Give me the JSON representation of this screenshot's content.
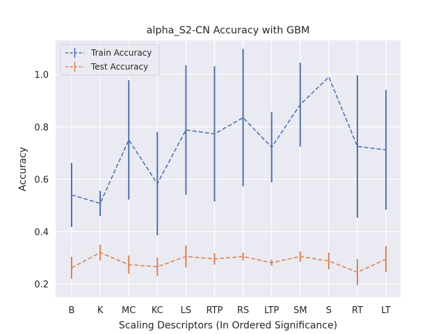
{
  "chart_data": {
    "type": "line",
    "title": "alpha_S2-CN Accuracy with GBM",
    "xlabel": "Scaling Descriptors (In Ordered Significance)",
    "ylabel": "Accuracy",
    "categories": [
      "B",
      "K",
      "MC",
      "KC",
      "LS",
      "RTP",
      "RS",
      "LTP",
      "SM",
      "S",
      "RT",
      "LT"
    ],
    "ylim": [
      0.15,
      1.13
    ],
    "yticks": [
      0.2,
      0.4,
      0.6,
      0.8,
      1.0
    ],
    "ytick_labels": [
      "0.2",
      "0.4",
      "0.6",
      "0.8",
      "1.0"
    ],
    "grid": true,
    "legend_position": "top-left",
    "series": [
      {
        "name": "Train Accuracy",
        "color": "#4c72b0",
        "values": [
          0.54,
          0.508,
          0.75,
          0.583,
          0.788,
          0.773,
          0.835,
          0.722,
          0.885,
          0.99,
          0.725,
          0.712
        ],
        "errors": [
          0.122,
          0.048,
          0.228,
          0.197,
          0.247,
          0.258,
          0.262,
          0.134,
          0.16,
          0.0,
          0.272,
          0.228
        ]
      },
      {
        "name": "Test Accuracy",
        "color": "#dd8452",
        "values": [
          0.262,
          0.32,
          0.274,
          0.266,
          0.305,
          0.296,
          0.305,
          0.281,
          0.305,
          0.288,
          0.245,
          0.295
        ],
        "errors": [
          0.042,
          0.03,
          0.035,
          0.035,
          0.042,
          0.022,
          0.015,
          0.012,
          0.02,
          0.032,
          0.05,
          0.05
        ]
      }
    ]
  }
}
